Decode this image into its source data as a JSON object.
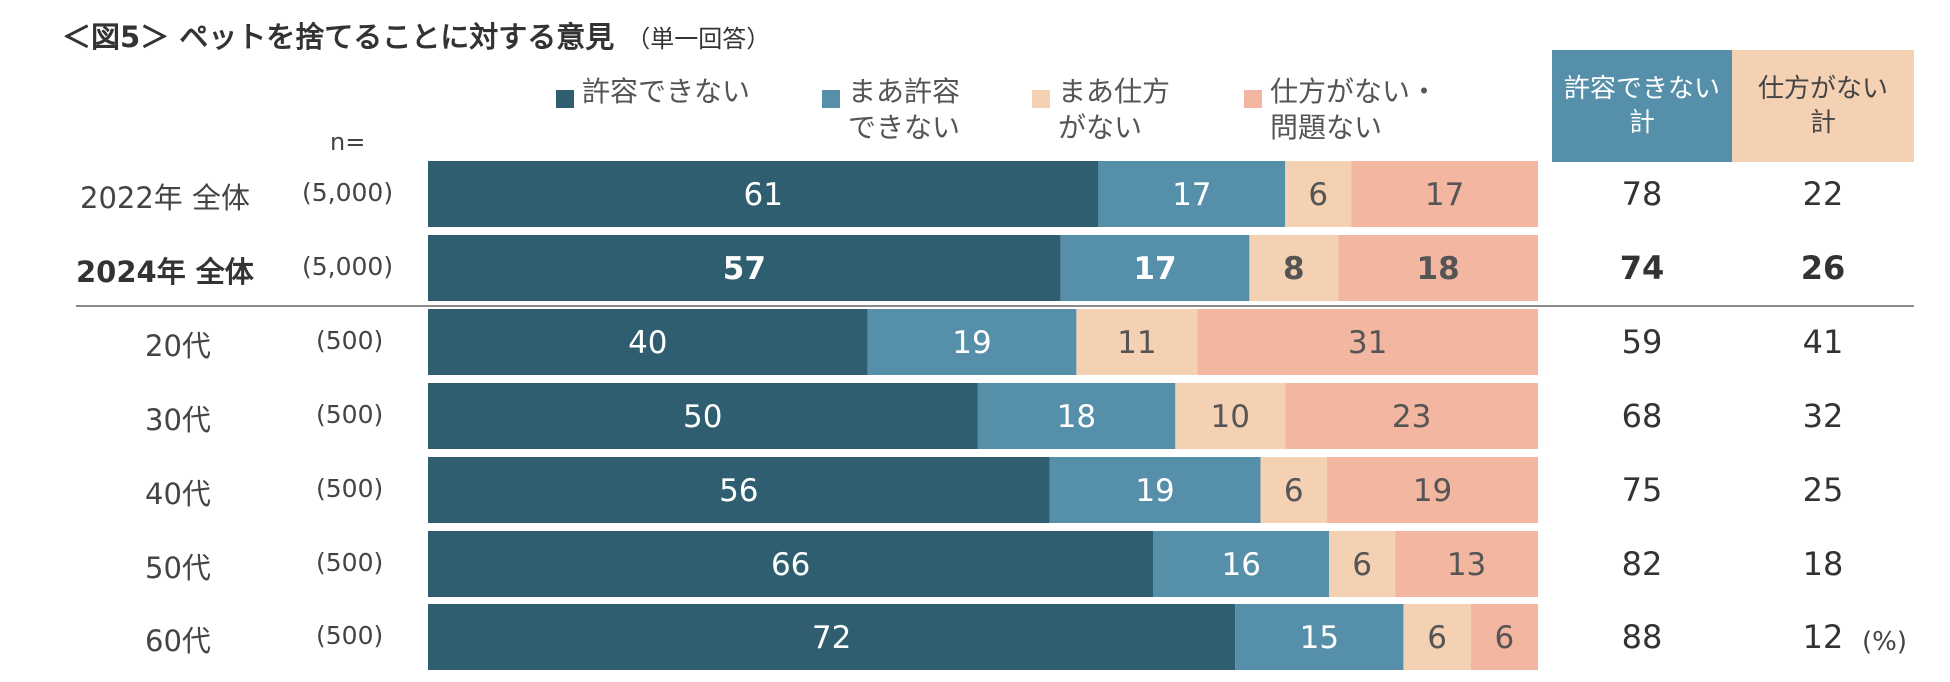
{
  "header": {
    "title": "＜図5＞ ペットを捨てることに対する意見",
    "subtitle": "（単一回答）"
  },
  "n_label": "n=",
  "colors": {
    "s1": "#2e5e70",
    "s2": "#568fa9",
    "s3": "#f4d1b2",
    "s4": "#f3b6a0",
    "sum1_bg": "#568fa9",
    "sum2_bg": "#f4d1b2"
  },
  "summary_headers": [
    "許容できない\n計",
    "仕方がない\n計"
  ],
  "unit_label": "(%)",
  "chart_data": {
    "type": "bar",
    "orientation": "horizontal",
    "stacked": true,
    "percent_total": true,
    "categories": [
      "2022年 全体",
      "2024年 全体",
      "20代",
      "30代",
      "40代",
      "50代",
      "60代"
    ],
    "n": [
      "(5,000)",
      "(5,000)",
      "(500)",
      "(500)",
      "(500)",
      "(500)",
      "(500)"
    ],
    "emphasized_row": 1,
    "series": [
      {
        "name": "許容できない",
        "legend": "許容できない",
        "values": [
          61,
          57,
          40,
          50,
          56,
          66,
          72
        ]
      },
      {
        "name": "まあ許容できない",
        "legend": "まあ許容\nできない",
        "values": [
          17,
          17,
          19,
          18,
          19,
          16,
          15
        ]
      },
      {
        "name": "まあ仕方がない",
        "legend": "まあ仕方\nがない",
        "values": [
          6,
          8,
          11,
          10,
          6,
          6,
          6
        ]
      },
      {
        "name": "仕方がない・問題ない",
        "legend": "仕方がない・\n問題ない",
        "values": [
          17,
          18,
          31,
          23,
          19,
          13,
          6
        ]
      }
    ],
    "totals": {
      "unacceptable_total": [
        78,
        74,
        59,
        68,
        75,
        82,
        88
      ],
      "unavoidable_total": [
        22,
        26,
        41,
        32,
        25,
        18,
        12
      ]
    },
    "legend_position": "top",
    "grid": false
  }
}
